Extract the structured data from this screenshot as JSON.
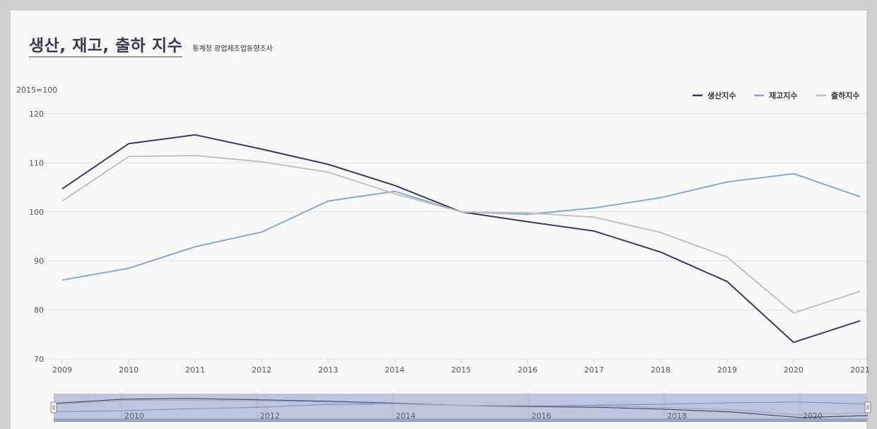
{
  "title": "생산, 재고, 출하 지수",
  "source": "통계청 광업제조업동향조사",
  "chart_data": {
    "type": "line",
    "unit_label": "2015=100",
    "x": [
      "2009",
      "2010",
      "2011",
      "2012",
      "2013",
      "2014",
      "2015",
      "2016",
      "2017",
      "2018",
      "2019",
      "2020",
      "2021"
    ],
    "ylim": [
      70,
      120
    ],
    "yticks": [
      70,
      80,
      90,
      100,
      110,
      120
    ],
    "grid": true,
    "legend_position": "top-right",
    "series": [
      {
        "name": "생산지수",
        "color": "#3b3a5c",
        "values": [
          104.7,
          113.9,
          115.7,
          112.8,
          109.7,
          105.4,
          100.0,
          98.0,
          96.1,
          91.8,
          85.8,
          73.4,
          77.8
        ]
      },
      {
        "name": "재고지수",
        "color": "#8da7d3",
        "values": [
          86.1,
          88.5,
          92.9,
          95.9,
          102.2,
          104.2,
          100.0,
          99.5,
          100.8,
          102.9,
          106.1,
          107.8,
          103.1
        ]
      },
      {
        "name": "출하지수",
        "color": "#c2c2c2",
        "values": [
          102.2,
          111.3,
          111.5,
          110.2,
          108.1,
          103.7,
          100.0,
          99.8,
          98.9,
          95.8,
          90.8,
          79.4,
          83.8
        ]
      }
    ],
    "navigator": {
      "ticks": [
        "2010",
        "2012",
        "2014",
        "2016",
        "2018",
        "2020"
      ]
    }
  }
}
